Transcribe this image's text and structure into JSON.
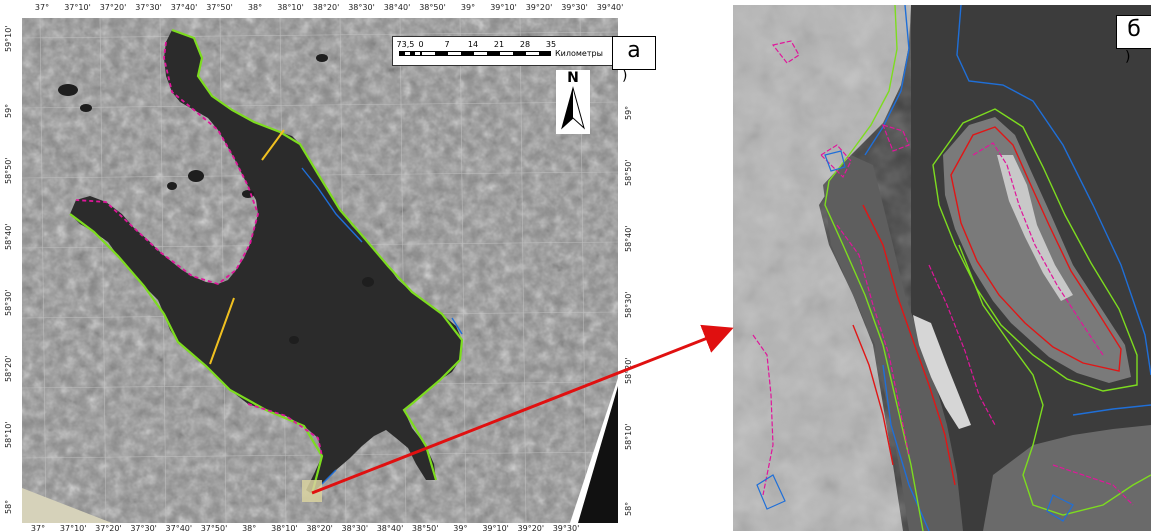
{
  "panels": {
    "a": {
      "label": "а",
      "tail": ")"
    },
    "b": {
      "label": "б",
      "tail": ")"
    }
  },
  "map": {
    "top_ticks": [
      "37°",
      "37°10'",
      "37°20'",
      "37°30'",
      "37°40'",
      "37°50'",
      "38°",
      "38°10'",
      "38°20'",
      "38°30'",
      "38°40'",
      "38°50'",
      "39°",
      "39°10'",
      "39°20'",
      "39°30'",
      "39°40'"
    ],
    "bottom_ticks": [
      "37°",
      "37°10'",
      "37°20'",
      "37°30'",
      "37°40'",
      "37°50'",
      "38°",
      "38°10'",
      "38°20'",
      "38°30'",
      "38°40'",
      "38°50'",
      "39°",
      "39°10'",
      "39°20'",
      "39°30'"
    ],
    "left_ticks": [
      "59°10'",
      "59°",
      "58°50'",
      "58°40'",
      "58°30'",
      "58°20'",
      "58°10'",
      "58°"
    ],
    "right_ticks": [
      "59°",
      "58°50'",
      "58°40'",
      "58°30'",
      "58°20'",
      "58°10'",
      "58°"
    ],
    "scalebar": {
      "labels": [
        "7",
        "3,5",
        "0",
        "7",
        "14",
        "21",
        "28",
        "35"
      ],
      "unit": "Километры"
    },
    "north_label": "N"
  },
  "colors": {
    "water": "#2b2b2b",
    "land": "#8a8a8a",
    "contour_green": "#7ddc1f",
    "contour_magenta": "#e0169b",
    "contour_blue": "#1f6fd8",
    "contour_red": "#e01616",
    "section_line": "#f0c020",
    "arrow": "#e01010"
  }
}
